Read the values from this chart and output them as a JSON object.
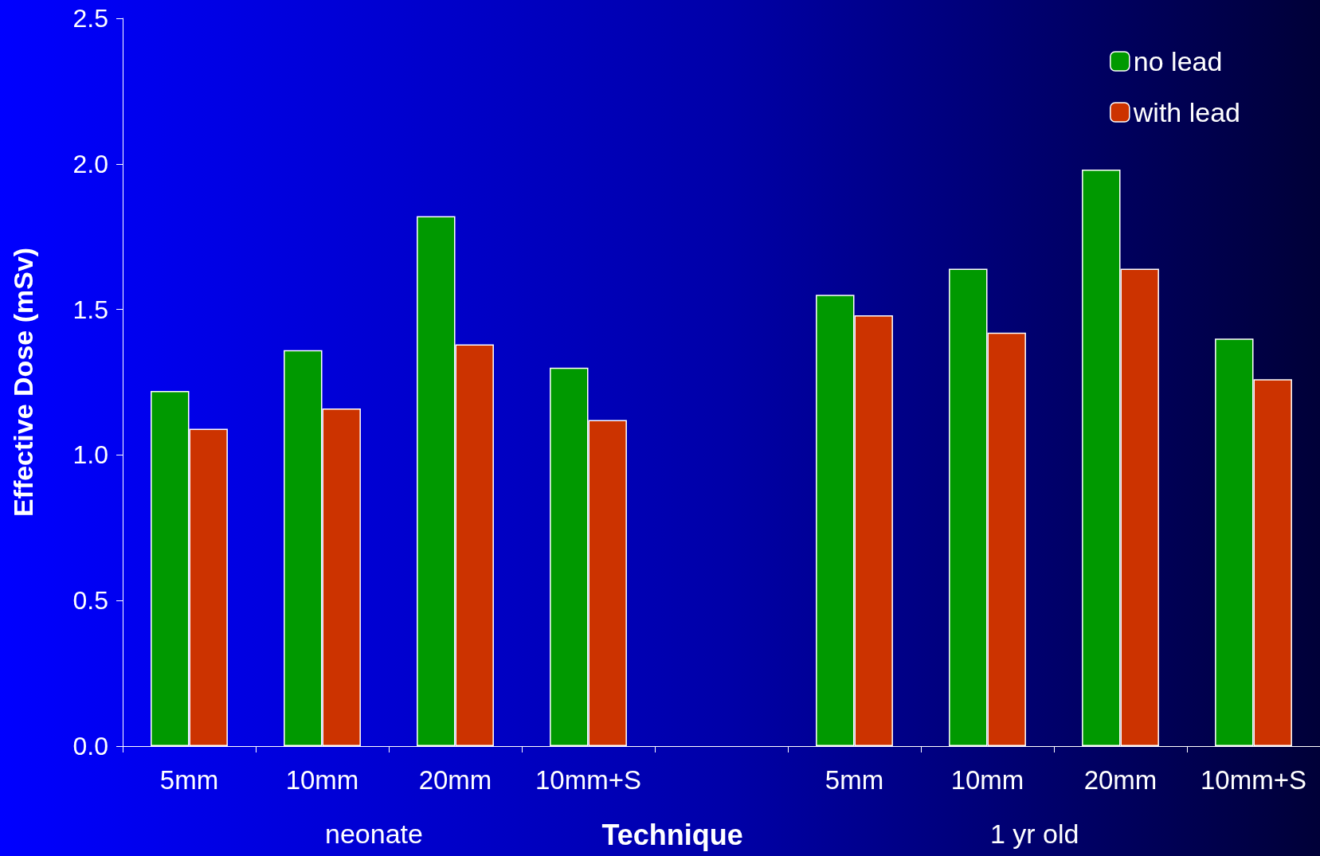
{
  "chart_data": {
    "type": "bar",
    "ylabel": "Effective Dose (mSv)",
    "xlabel": "Technique",
    "categories": [
      "5mm",
      "10mm",
      "20mm",
      "10mm+S",
      null,
      "5mm",
      "10mm",
      "20mm",
      "10mm+S"
    ],
    "series": [
      {
        "name": "no lead",
        "color": "#009900",
        "values": [
          1.22,
          1.36,
          1.82,
          1.3,
          null,
          1.55,
          1.64,
          1.98,
          1.4
        ]
      },
      {
        "name": "with lead",
        "color": "#cc3300",
        "values": [
          1.09,
          1.16,
          1.38,
          1.12,
          null,
          1.48,
          1.42,
          1.64,
          1.26
        ]
      }
    ],
    "annotations": [
      "neonate",
      "1 yr old"
    ],
    "ylim": [
      0,
      2.5
    ],
    "yticks": [
      {
        "value": 0,
        "label": "0.0"
      },
      {
        "value": 0.5,
        "label": "0.5"
      },
      {
        "value": 1,
        "label": "1.0"
      },
      {
        "value": 1.5,
        "label": "1.5"
      },
      {
        "value": 2,
        "label": "2.0"
      },
      {
        "value": 2.5,
        "label": "2.5"
      }
    ],
    "grid": false,
    "legend": "top right"
  }
}
